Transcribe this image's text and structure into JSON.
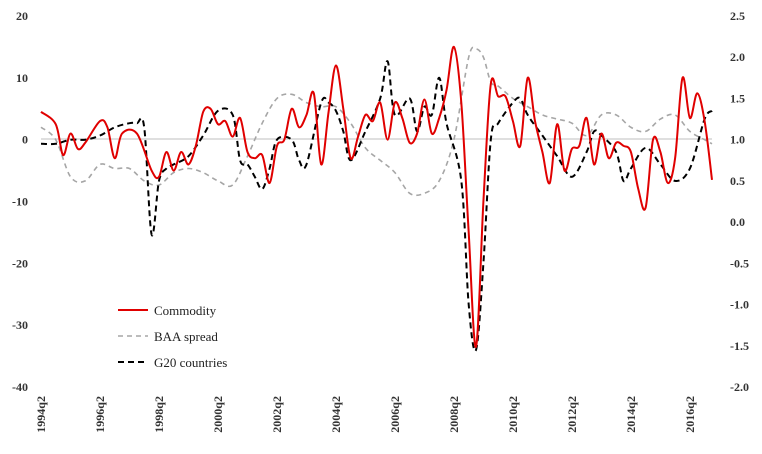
{
  "chart_data": {
    "type": "line",
    "title": "",
    "xlabel": "",
    "ylabel_left": "",
    "ylabel_right": "",
    "ylim_left": [
      -40,
      20
    ],
    "ylim_right": [
      -2.0,
      2.5
    ],
    "yticks_left": [
      "20",
      "10",
      "0",
      "-10",
      "-20",
      "-30",
      "-40"
    ],
    "yticks_right": [
      "2.5",
      "2.0",
      "1.5",
      "1.0",
      "0.5",
      "0.0",
      "-0.5",
      "-1.0",
      "-1.5",
      "-2.0"
    ],
    "xticks": [
      "1994q2",
      "1996q2",
      "1998q2",
      "2000q2",
      "2002q2",
      "2004q2",
      "2006q2",
      "2008q2",
      "2010q2",
      "2012q2",
      "2014q2",
      "2016q2"
    ],
    "grid": false,
    "legend_position": "bottom-left",
    "colors": {
      "commodity": "#e00000",
      "baa": "#a6a6a6",
      "g20": "#000000"
    },
    "series": [
      {
        "name": "Commodity",
        "axis": "left",
        "style": "solid",
        "points": [
          [
            1994.25,
            4.5
          ],
          [
            1994.75,
            2.5
          ],
          [
            1995.0,
            -2.5
          ],
          [
            1995.25,
            1.0
          ],
          [
            1995.5,
            -1.5
          ],
          [
            1995.75,
            -0.5
          ],
          [
            1996.25,
            3.0
          ],
          [
            1996.5,
            2.0
          ],
          [
            1996.75,
            -3.0
          ],
          [
            1997.0,
            1.0
          ],
          [
            1997.5,
            1.0
          ],
          [
            1998.0,
            -5.0
          ],
          [
            1998.25,
            -6.0
          ],
          [
            1998.5,
            -2.0
          ],
          [
            1998.75,
            -5.0
          ],
          [
            1999.0,
            -2.0
          ],
          [
            1999.25,
            -4.0
          ],
          [
            1999.5,
            -1.0
          ],
          [
            1999.75,
            4.5
          ],
          [
            2000.0,
            5.0
          ],
          [
            2000.25,
            2.5
          ],
          [
            2000.5,
            3.0
          ],
          [
            2000.75,
            0.5
          ],
          [
            2001.0,
            3.5
          ],
          [
            2001.25,
            -2.0
          ],
          [
            2001.5,
            -3.0
          ],
          [
            2001.75,
            -2.5
          ],
          [
            2002.0,
            -7.0
          ],
          [
            2002.25,
            -1.0
          ],
          [
            2002.5,
            0.0
          ],
          [
            2002.75,
            5.0
          ],
          [
            2003.0,
            2.0
          ],
          [
            2003.25,
            4.0
          ],
          [
            2003.5,
            7.5
          ],
          [
            2003.75,
            -4.0
          ],
          [
            2004.0,
            4.5
          ],
          [
            2004.25,
            12.0
          ],
          [
            2004.5,
            5.0
          ],
          [
            2004.75,
            -3.0
          ],
          [
            2005.0,
            0.5
          ],
          [
            2005.25,
            4.0
          ],
          [
            2005.5,
            3.0
          ],
          [
            2005.75,
            6.0
          ],
          [
            2006.0,
            0.0
          ],
          [
            2006.25,
            6.0
          ],
          [
            2006.5,
            3.5
          ],
          [
            2006.75,
            -0.5
          ],
          [
            2007.0,
            1.0
          ],
          [
            2007.25,
            6.5
          ],
          [
            2007.5,
            1.0
          ],
          [
            2007.75,
            3.5
          ],
          [
            2008.0,
            8.0
          ],
          [
            2008.25,
            15.0
          ],
          [
            2008.5,
            6.0
          ],
          [
            2008.75,
            -15.0
          ],
          [
            2009.0,
            -33.5
          ],
          [
            2009.25,
            -10.0
          ],
          [
            2009.5,
            9.0
          ],
          [
            2009.75,
            7.0
          ],
          [
            2010.0,
            7.0
          ],
          [
            2010.25,
            3.0
          ],
          [
            2010.5,
            -1.0
          ],
          [
            2010.75,
            10.0
          ],
          [
            2011.0,
            3.0
          ],
          [
            2011.25,
            -2.0
          ],
          [
            2011.5,
            -7.0
          ],
          [
            2011.75,
            2.5
          ],
          [
            2012.0,
            -5.0
          ],
          [
            2012.25,
            -1.5
          ],
          [
            2012.5,
            -1.0
          ],
          [
            2012.75,
            3.5
          ],
          [
            2013.0,
            -4.0
          ],
          [
            2013.25,
            1.0
          ],
          [
            2013.5,
            -3.0
          ],
          [
            2013.75,
            -0.5
          ],
          [
            2014.0,
            -1.0
          ],
          [
            2014.25,
            -2.0
          ],
          [
            2014.5,
            -8.0
          ],
          [
            2014.75,
            -11.0
          ],
          [
            2015.0,
            0.0
          ],
          [
            2015.25,
            -2.0
          ],
          [
            2015.5,
            -7.0
          ],
          [
            2015.75,
            -3.0
          ],
          [
            2016.0,
            10.0
          ],
          [
            2016.25,
            3.5
          ],
          [
            2016.5,
            7.5
          ],
          [
            2016.75,
            3.0
          ],
          [
            2017.0,
            -6.5
          ]
        ]
      },
      {
        "name": "BAA spread",
        "axis": "right",
        "style": "dashed",
        "points": [
          [
            1994.25,
            1.15
          ],
          [
            1994.75,
            1.0
          ],
          [
            1995.25,
            0.55
          ],
          [
            1995.75,
            0.5
          ],
          [
            1996.25,
            0.7
          ],
          [
            1996.75,
            0.65
          ],
          [
            1997.25,
            0.65
          ],
          [
            1997.75,
            0.5
          ],
          [
            1998.25,
            0.45
          ],
          [
            1998.75,
            0.6
          ],
          [
            1999.25,
            0.65
          ],
          [
            1999.75,
            0.6
          ],
          [
            2000.25,
            0.5
          ],
          [
            2000.75,
            0.45
          ],
          [
            2001.25,
            0.8
          ],
          [
            2001.75,
            1.2
          ],
          [
            2002.25,
            1.5
          ],
          [
            2002.75,
            1.55
          ],
          [
            2003.25,
            1.45
          ],
          [
            2003.75,
            1.4
          ],
          [
            2004.25,
            1.4
          ],
          [
            2004.75,
            1.2
          ],
          [
            2005.25,
            0.9
          ],
          [
            2005.75,
            0.75
          ],
          [
            2006.25,
            0.6
          ],
          [
            2006.75,
            0.35
          ],
          [
            2007.25,
            0.35
          ],
          [
            2007.75,
            0.5
          ],
          [
            2008.25,
            1.0
          ],
          [
            2008.75,
            2.0
          ],
          [
            2009.0,
            2.1
          ],
          [
            2009.25,
            2.0
          ],
          [
            2009.5,
            1.7
          ],
          [
            2009.75,
            1.65
          ],
          [
            2010.25,
            1.5
          ],
          [
            2010.75,
            1.4
          ],
          [
            2011.25,
            1.3
          ],
          [
            2011.75,
            1.25
          ],
          [
            2012.25,
            1.2
          ],
          [
            2012.75,
            1.05
          ],
          [
            2013.25,
            1.3
          ],
          [
            2013.75,
            1.3
          ],
          [
            2014.25,
            1.15
          ],
          [
            2014.75,
            1.1
          ],
          [
            2015.25,
            1.25
          ],
          [
            2015.75,
            1.3
          ],
          [
            2016.25,
            1.1
          ],
          [
            2016.75,
            1.0
          ],
          [
            2017.0,
            0.95
          ]
        ]
      },
      {
        "name": "G20 countries",
        "axis": "right",
        "style": "dashed",
        "points": [
          [
            1994.25,
            0.95
          ],
          [
            1994.75,
            0.95
          ],
          [
            1995.25,
            1.0
          ],
          [
            1995.75,
            1.0
          ],
          [
            1996.25,
            1.05
          ],
          [
            1996.75,
            1.15
          ],
          [
            1997.25,
            1.2
          ],
          [
            1997.5,
            1.2
          ],
          [
            1997.75,
            1.15
          ],
          [
            1998.0,
            -0.15
          ],
          [
            1998.25,
            0.5
          ],
          [
            1998.5,
            0.65
          ],
          [
            1998.75,
            0.7
          ],
          [
            1999.25,
            0.8
          ],
          [
            1999.75,
            1.05
          ],
          [
            2000.25,
            1.35
          ],
          [
            2000.75,
            1.3
          ],
          [
            2001.0,
            0.75
          ],
          [
            2001.25,
            0.7
          ],
          [
            2001.5,
            0.55
          ],
          [
            2001.75,
            0.4
          ],
          [
            2002.0,
            0.65
          ],
          [
            2002.25,
            1.0
          ],
          [
            2002.75,
            1.0
          ],
          [
            2003.0,
            0.75
          ],
          [
            2003.25,
            0.7
          ],
          [
            2003.75,
            1.45
          ],
          [
            2004.0,
            1.45
          ],
          [
            2004.25,
            1.35
          ],
          [
            2004.5,
            1.1
          ],
          [
            2004.75,
            0.75
          ],
          [
            2005.25,
            1.1
          ],
          [
            2005.75,
            1.5
          ],
          [
            2006.0,
            1.95
          ],
          [
            2006.25,
            1.3
          ],
          [
            2006.75,
            1.5
          ],
          [
            2007.0,
            1.1
          ],
          [
            2007.25,
            1.4
          ],
          [
            2007.5,
            1.3
          ],
          [
            2007.75,
            1.75
          ],
          [
            2008.0,
            1.2
          ],
          [
            2008.5,
            0.5
          ],
          [
            2008.75,
            -1.0
          ],
          [
            2009.0,
            -1.55
          ],
          [
            2009.25,
            -0.5
          ],
          [
            2009.5,
            1.0
          ],
          [
            2009.75,
            1.2
          ],
          [
            2010.25,
            1.45
          ],
          [
            2010.5,
            1.5
          ],
          [
            2010.75,
            1.3
          ],
          [
            2011.25,
            1.05
          ],
          [
            2011.75,
            0.8
          ],
          [
            2012.25,
            0.55
          ],
          [
            2012.75,
            0.85
          ],
          [
            2013.0,
            1.1
          ],
          [
            2013.25,
            1.05
          ],
          [
            2013.75,
            0.85
          ],
          [
            2014.0,
            0.5
          ],
          [
            2014.25,
            0.65
          ],
          [
            2014.75,
            0.9
          ],
          [
            2015.25,
            0.7
          ],
          [
            2015.75,
            0.5
          ],
          [
            2016.25,
            0.65
          ],
          [
            2016.75,
            1.25
          ],
          [
            2017.0,
            1.35
          ]
        ]
      }
    ]
  }
}
